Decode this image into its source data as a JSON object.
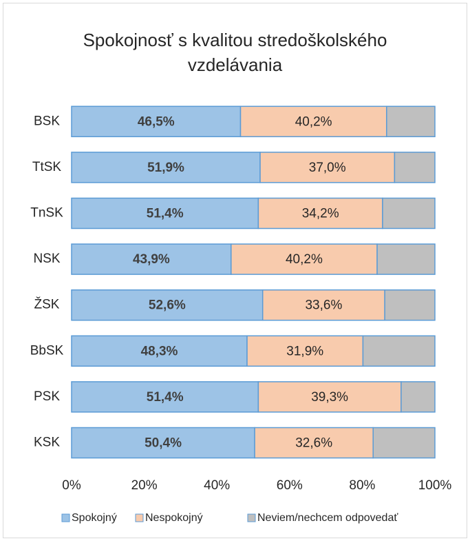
{
  "chart_data": {
    "type": "stacked_bar_horizontal",
    "title": "Spokojnosť s kvalitou stredoškolského vzdelávania",
    "categories": [
      "BSK",
      "TtSK",
      "TnSK",
      "NSK",
      "ŽSK",
      "BbSK",
      "PSK",
      "KSK"
    ],
    "series": [
      {
        "name": "Spokojný",
        "color": "#9dc3e6",
        "values": [
          46.5,
          51.9,
          51.4,
          43.9,
          52.6,
          48.3,
          51.4,
          50.4
        ],
        "value_labels": [
          "46,5%",
          "51,9%",
          "51,4%",
          "43,9%",
          "52,6%",
          "48,3%",
          "51,4%",
          "50,4%"
        ]
      },
      {
        "name": "Nespokojný",
        "color": "#f8cbad",
        "values": [
          40.2,
          37.0,
          34.2,
          40.2,
          33.6,
          31.9,
          39.3,
          32.6
        ],
        "value_labels": [
          "40,2%",
          "37,0%",
          "34,2%",
          "40,2%",
          "33,6%",
          "31,9%",
          "39,3%",
          "32,6%"
        ]
      },
      {
        "name": "Neviem/nechcem odpovedať",
        "color": "#bfbfbf",
        "values": [
          13.3,
          11.1,
          14.4,
          15.9,
          13.8,
          19.8,
          9.3,
          17.0
        ]
      }
    ],
    "xlim": [
      0,
      100
    ],
    "xticks": [
      {
        "value": 0,
        "label": "0%"
      },
      {
        "value": 20,
        "label": "20%"
      },
      {
        "value": 40,
        "label": "40%"
      },
      {
        "value": 60,
        "label": "60%"
      },
      {
        "value": 80,
        "label": "80%"
      },
      {
        "value": 100,
        "label": "100%"
      }
    ],
    "legend": "bottom"
  }
}
